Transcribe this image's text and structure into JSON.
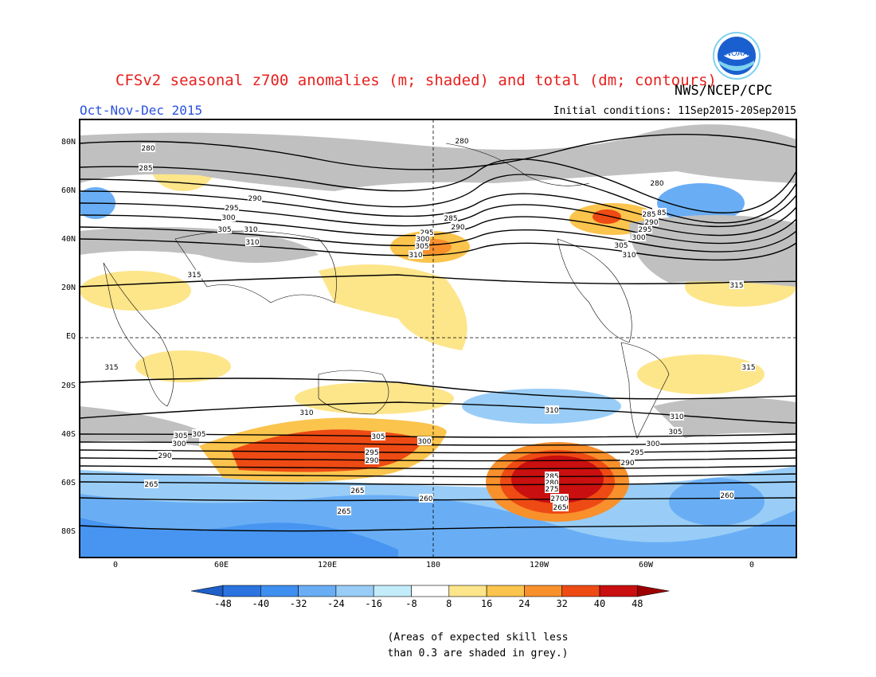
{
  "title": "CFSv2 seasonal z700 anomalies (m; shaded) and total (dm; contours)",
  "organization": "NWS/NCEP/CPC",
  "season": "Oct-Nov-Dec 2015",
  "initial_conditions": "Initial conditions: 11Sep2015-20Sep2015",
  "logo": {
    "text": "NOAA",
    "icon": "noaa-logo-icon",
    "color": "#1a5fd0"
  },
  "map": {
    "lat_labels": [
      "80N",
      "60N",
      "40N",
      "20N",
      "EQ",
      "20S",
      "40S",
      "60S",
      "80S"
    ],
    "lon_labels": [
      "0",
      "60E",
      "120E",
      "180",
      "120W",
      "60W",
      "0"
    ],
    "contour_labels": [
      "280",
      "285",
      "290",
      "295",
      "300",
      "305",
      "310",
      "315",
      "280",
      "285",
      "290",
      "295",
      "300",
      "305",
      "310",
      "280",
      "285",
      "290",
      "295",
      "300",
      "305",
      "310",
      "315",
      "315",
      "310",
      "305",
      "300",
      "295",
      "290",
      "285",
      "280",
      "270",
      "265",
      "310",
      "305",
      "300",
      "295",
      "290",
      "265",
      "260",
      "265",
      "310",
      "305",
      "300",
      "290",
      "285",
      "280",
      "275",
      "270",
      "265",
      "260",
      "315",
      "310",
      "305"
    ]
  },
  "colorbar": {
    "labels": [
      "-48",
      "-40",
      "-32",
      "-24",
      "-16",
      "-8",
      "8",
      "16",
      "24",
      "32",
      "40",
      "48"
    ],
    "colors": [
      "#1f5fc8",
      "#2b74e0",
      "#3f8ff0",
      "#69aef5",
      "#99cdf7",
      "#c3ecfa",
      "#ffffff",
      "#fde58a",
      "#fbc44d",
      "#f8902c",
      "#ee4a14",
      "#c90f0f",
      "#9c0000"
    ]
  },
  "note": [
    "(Areas of expected skill less",
    "than 0.3 are shaded in grey.)"
  ]
}
